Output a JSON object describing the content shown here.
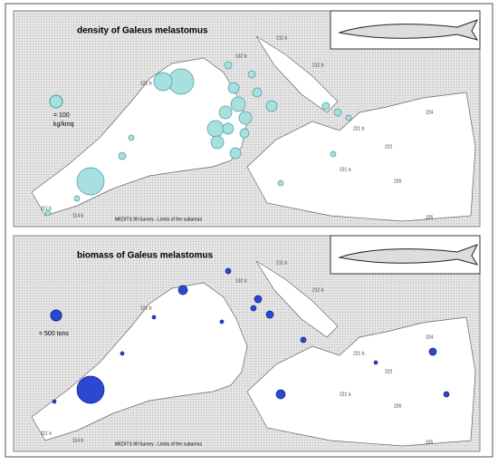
{
  "panels": [
    {
      "title": "density of Galeus melastomus",
      "legend": [
        "= 100",
        "kg/kmq"
      ],
      "footer": "MEDITS 99 Survey - Limits of the subareas",
      "area_labels": [
        "111 b",
        "114 b",
        "121 b",
        "132 b",
        "211 b",
        "212 b",
        "221 b",
        "221 a",
        "222",
        "224",
        "225",
        "226"
      ]
    },
    {
      "title": "biomass of Galeus melastomus",
      "legend": [
        "= 500 tons"
      ],
      "footer": "MEDITS 99 Survey - Limits of the subareas",
      "area_labels": [
        "111 a",
        "114 b",
        "121 b",
        "132 b",
        "211 b",
        "212 b",
        "221 b",
        "221 a",
        "222",
        "224",
        "225",
        "226"
      ]
    }
  ]
}
